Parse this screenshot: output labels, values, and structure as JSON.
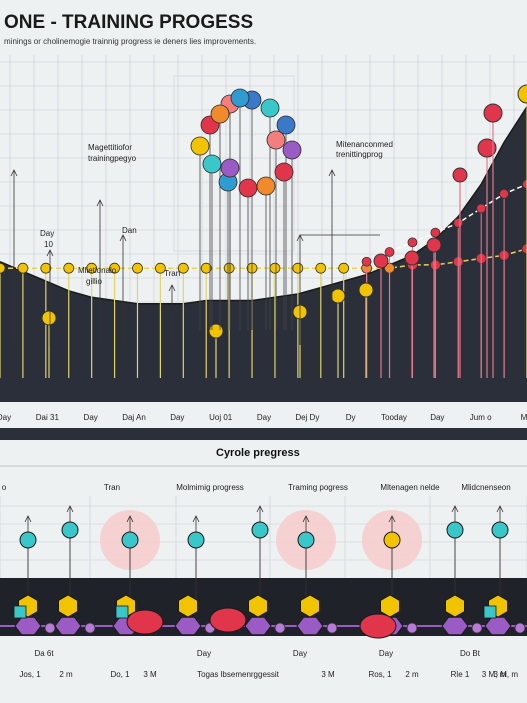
{
  "title": "ONE - TRAINING PROGESS",
  "subtitle": "minings or cholinemogie trainnig progress ie deners lies improvements.",
  "colors": {
    "background": "#eef1f2",
    "dark_area": "#2b2f3a",
    "yellow": "#f2c400",
    "red": "#e0354a",
    "teal": "#39c7c9",
    "purple": "#9b5bc4",
    "grid": "#c9ced3"
  },
  "top_annotations": [
    {
      "text": "Day"
    },
    {
      "text": "10"
    },
    {
      "text": "Mlietionalo"
    },
    {
      "text": "gillio"
    },
    {
      "text": "Magettitiofor"
    },
    {
      "text": "trainingpegyo"
    },
    {
      "text": "Dan"
    },
    {
      "text": "Tran"
    },
    {
      "text": "Mitenanconmed"
    },
    {
      "text": "trenittingprog"
    }
  ],
  "top_xaxis_labels": [
    "Day",
    "Dai 31",
    "Day",
    "Daj An",
    "Day",
    "Uoj 01",
    "Day",
    "Dej Dy",
    "Dy",
    "Tooday",
    "Day",
    "Jum o",
    "M"
  ],
  "lower_title": "Cyrole pregress",
  "lower_section_labels": [
    "o",
    "Tran",
    "Molmimig progress",
    "Traming pogress",
    "Mltenagen nelde",
    "Mlidcnenseon"
  ],
  "lower_xaxis_row1": [
    "Da 6t",
    "Day",
    "Day",
    "Day",
    "Do Bt"
  ],
  "lower_xaxis_row2": [
    "Jos, 1",
    "2 m",
    "Do, 1",
    "3 M",
    "Togas lbsemenrggessit",
    "3 M",
    "Ros, 1",
    "2 m",
    "Rle 1",
    "3 M, m"
  ],
  "chart_data": [
    {
      "type": "area",
      "title": "ONE - TRAINING PROGESS",
      "x": [
        0,
        1,
        2,
        3,
        4,
        5,
        6,
        7,
        8,
        9,
        10,
        11,
        12,
        13,
        14,
        15,
        16,
        17,
        18,
        19,
        20,
        21,
        22,
        23
      ],
      "series": [
        {
          "values": [
            64,
            67,
            70,
            73,
            75,
            76,
            77,
            77,
            77,
            76,
            76,
            76,
            75,
            74,
            72,
            70,
            68,
            65,
            62,
            57,
            50,
            40,
            27,
            16
          ]
        },
        {
          "values": [
            34,
            34,
            34,
            34,
            34,
            34,
            34,
            34,
            34,
            34,
            34,
            34,
            34,
            34,
            34,
            34,
            34,
            34,
            35,
            35,
            36,
            37,
            38,
            40
          ]
        },
        {
          "values": [
            45,
            46,
            47,
            49,
            50,
            51,
            52,
            53,
            54,
            56,
            57,
            58,
            59,
            60,
            61,
            62,
            64,
            66,
            68,
            70,
            72,
            75,
            78,
            80
          ]
        }
      ],
      "grid": true
    },
    {
      "type": "scatter",
      "title": "Cyrole pregress",
      "series": [
        {
          "values": [
            1,
            1,
            1,
            1,
            1,
            1,
            1,
            1,
            1,
            1,
            1
          ]
        },
        {
          "values": [
            2,
            2,
            2,
            2,
            2,
            2,
            2,
            2,
            2,
            2,
            2
          ]
        }
      ]
    }
  ]
}
